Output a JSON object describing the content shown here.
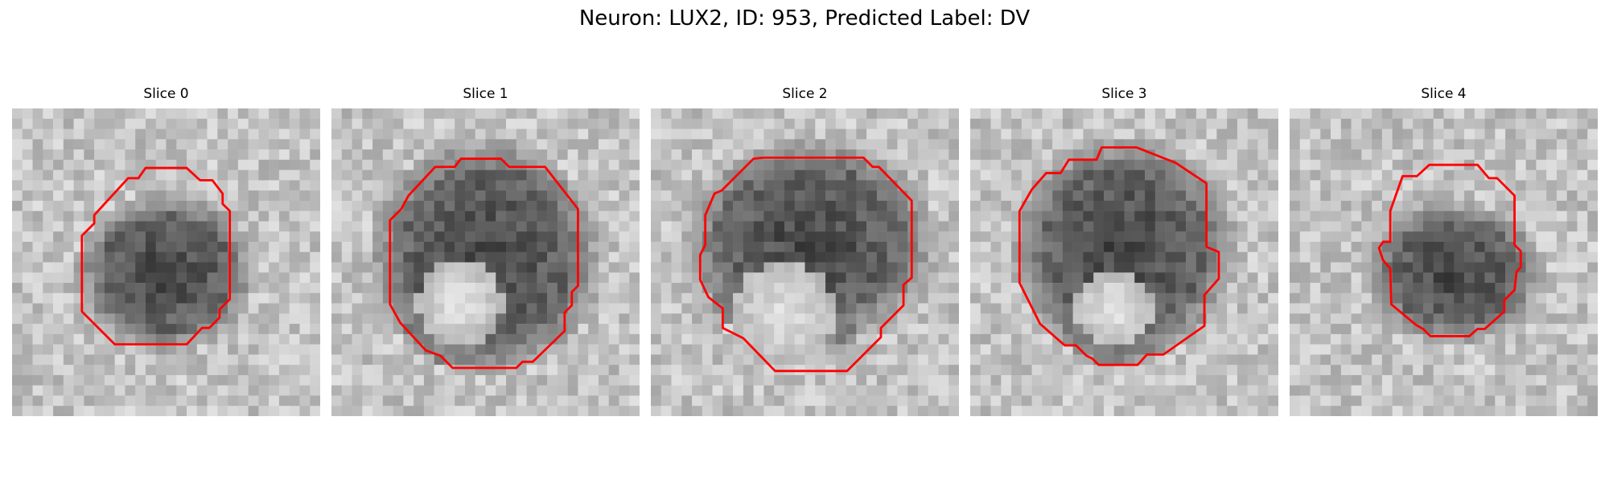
{
  "figure": {
    "title": "Neuron: LUX2, ID: 953, Predicted Label: DV"
  },
  "panels": [
    {
      "title": "Slice 0"
    },
    {
      "title": "Slice 1"
    },
    {
      "title": "Slice 2"
    },
    {
      "title": "Slice 3"
    },
    {
      "title": "Slice 4"
    }
  ],
  "colors": {
    "contour": "#ff0000",
    "image_colormap": "gray",
    "background": "#ffffff"
  }
}
